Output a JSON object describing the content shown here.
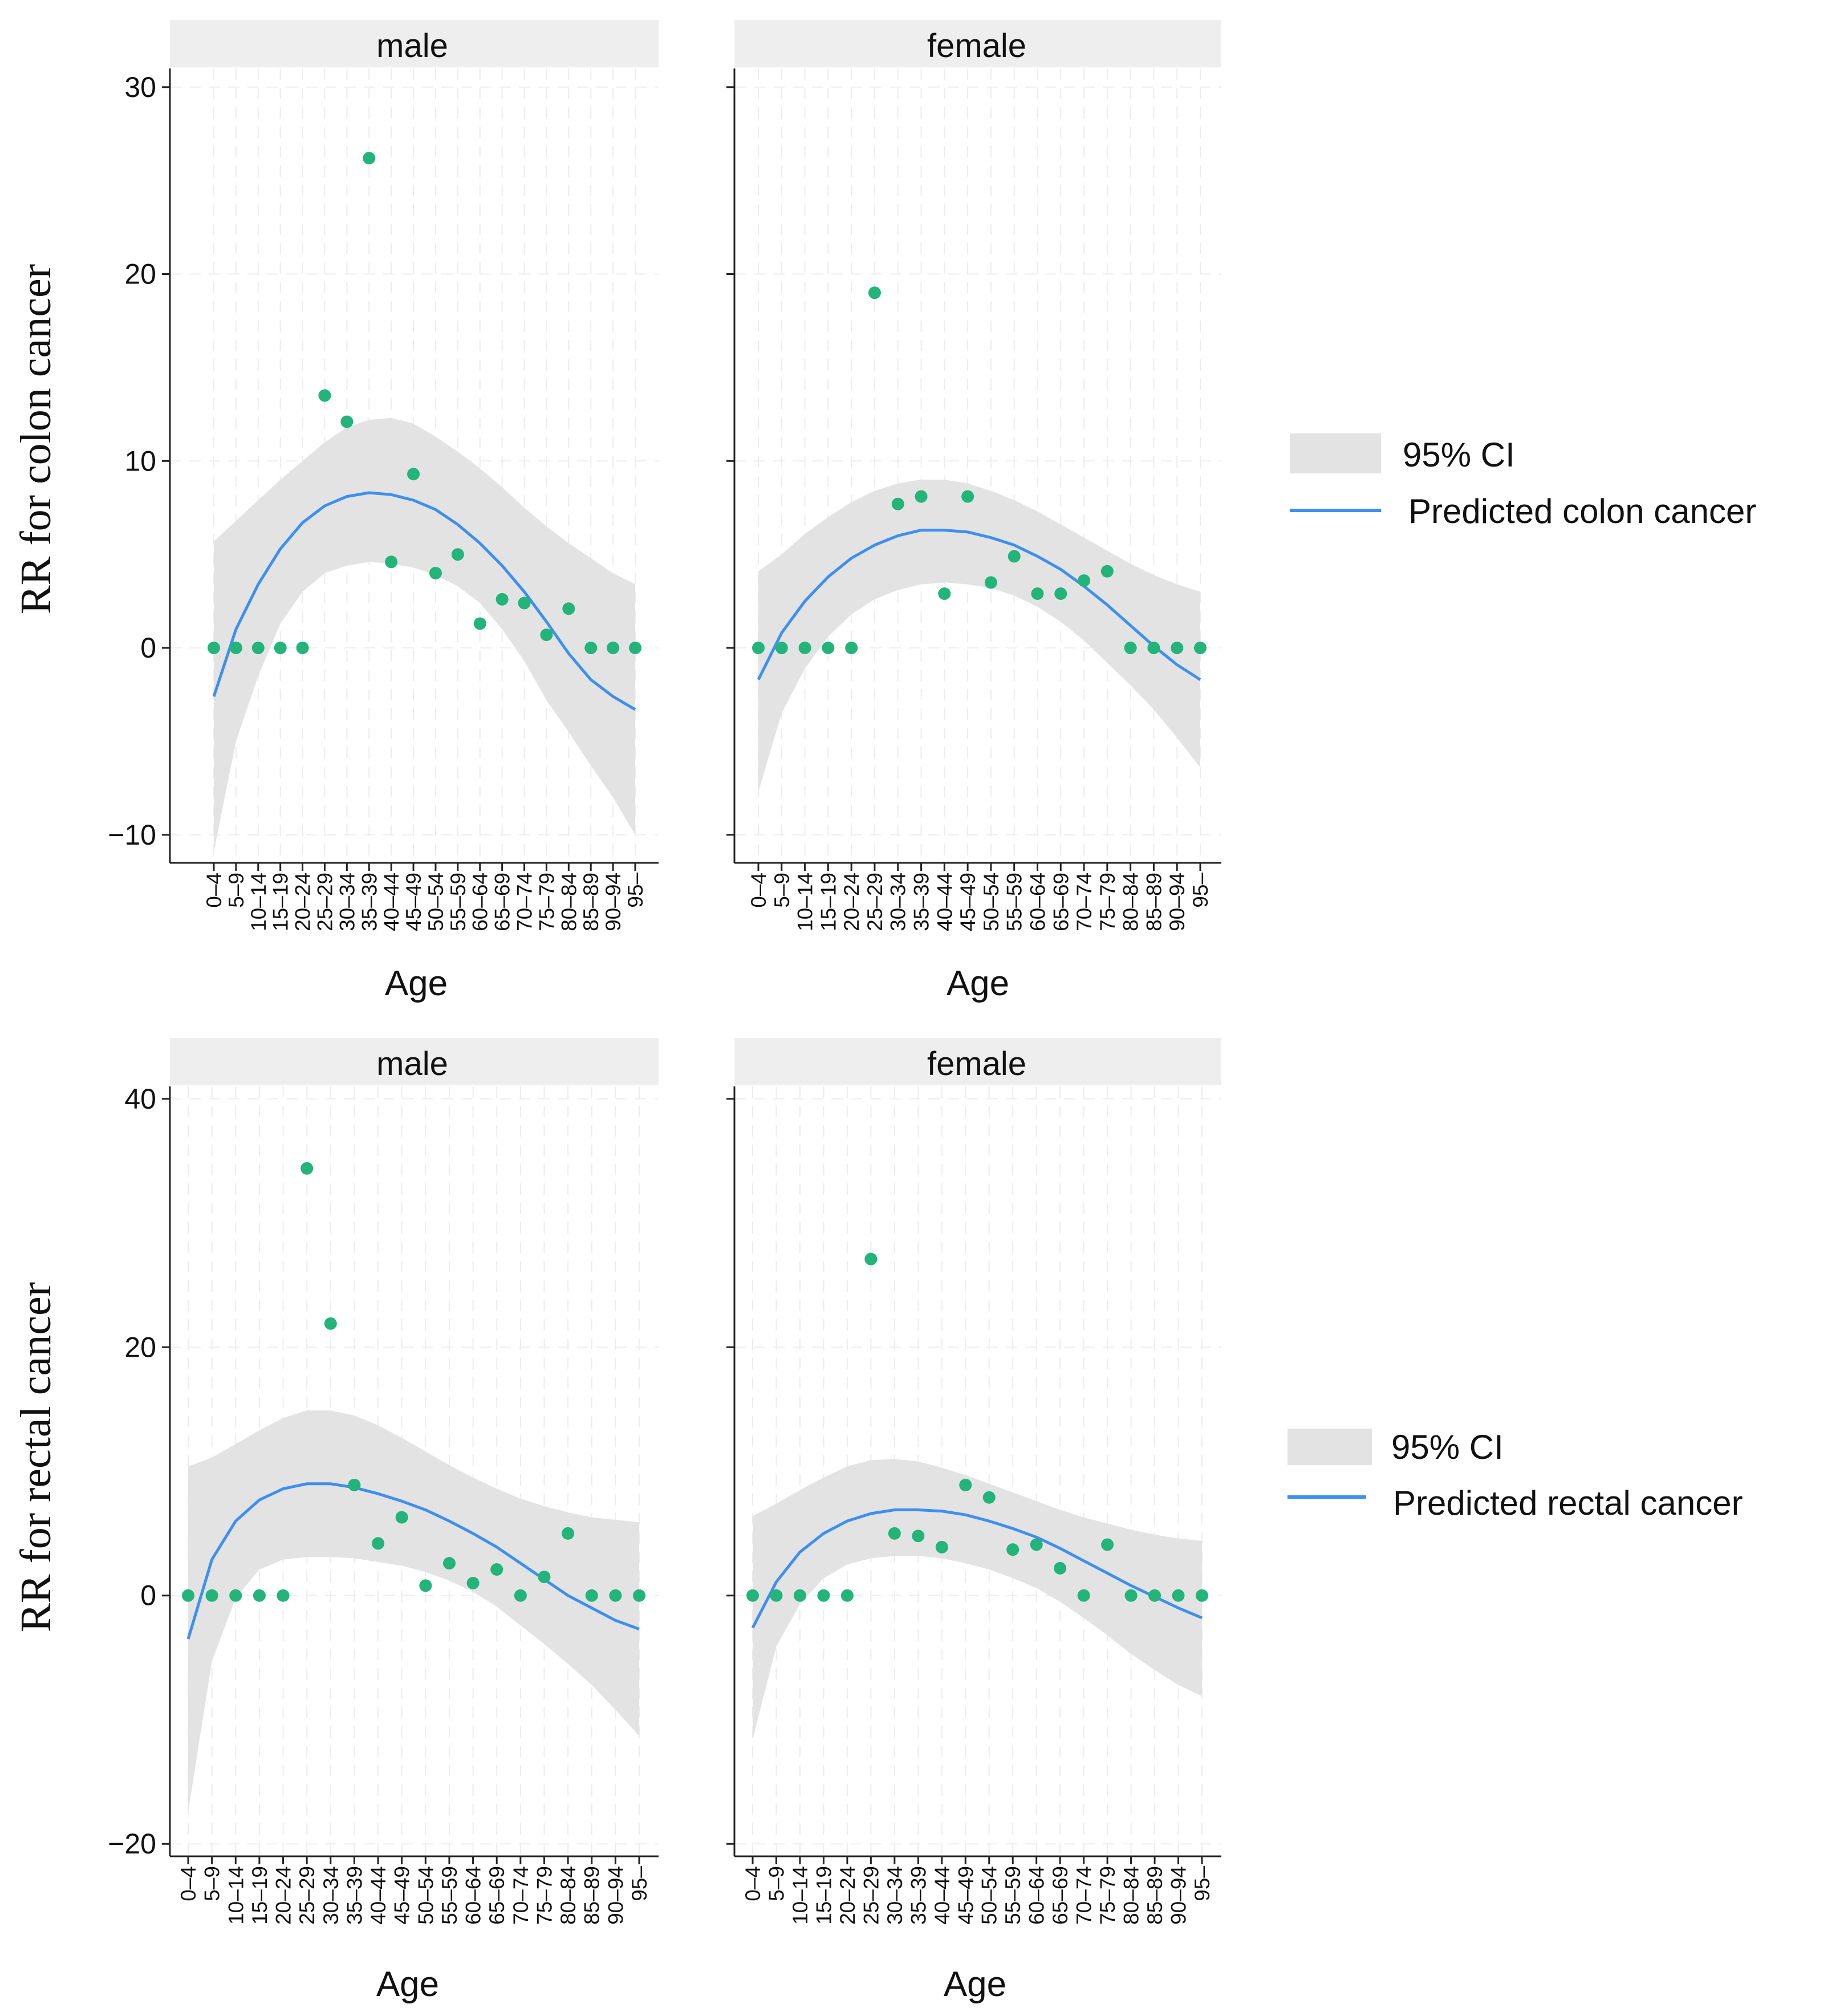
{
  "age_groups": [
    "0–4",
    "5–9",
    "10–14",
    "15–19",
    "20–24",
    "25–29",
    "30–34",
    "35–39",
    "40–44",
    "45–49",
    "50–54",
    "55–59",
    "60–64",
    "65–69",
    "70–74",
    "75–79",
    "80–84",
    "85–89",
    "90–94",
    "95–"
  ],
  "colors": {
    "point": "#22b47a",
    "line": "#3d8ff0",
    "ci": "#e3e3e3",
    "strip": "#eeeeee",
    "grid": "#f1f1f1"
  },
  "chart_data": [
    {
      "type": "scatter",
      "ylabel": "RR for colon cancer",
      "yticks": [
        -10,
        0,
        10,
        20,
        30
      ],
      "ylim": [
        -11.5,
        31
      ],
      "xlabel": "Age",
      "legend": {
        "ci_label": "95% CI",
        "line_label": "Predicted colon cancer"
      },
      "panels": [
        {
          "strip": "male",
          "points": [
            0,
            0,
            0,
            0,
            0,
            13.5,
            12.1,
            26.2,
            4.6,
            9.3,
            4.0,
            5.0,
            1.3,
            2.6,
            2.4,
            0.7,
            2.1,
            0,
            0,
            0
          ],
          "fit": [
            -2.6,
            1.0,
            3.4,
            5.3,
            6.7,
            7.6,
            8.1,
            8.3,
            8.2,
            7.9,
            7.4,
            6.6,
            5.6,
            4.4,
            3.0,
            1.4,
            -0.3,
            -1.7,
            -2.6,
            -3.3
          ],
          "ci_upper": [
            5.7,
            6.8,
            7.9,
            9.0,
            10.0,
            11.0,
            11.8,
            12.2,
            12.3,
            12.0,
            11.3,
            10.5,
            9.6,
            8.6,
            7.5,
            6.5,
            5.6,
            4.8,
            4.0,
            3.4
          ],
          "ci_lower": [
            -10.9,
            -5.0,
            -1.5,
            1.3,
            3.0,
            4.0,
            4.4,
            4.6,
            4.5,
            4.3,
            3.9,
            3.3,
            2.4,
            1.0,
            -0.7,
            -2.8,
            -4.5,
            -6.3,
            -8.0,
            -10.0
          ]
        },
        {
          "strip": "female",
          "points": [
            0,
            0,
            0,
            0,
            0,
            19.0,
            7.7,
            8.1,
            2.9,
            8.1,
            3.5,
            4.9,
            2.9,
            2.9,
            3.6,
            4.1,
            0,
            0,
            0,
            0
          ],
          "fit": [
            -1.7,
            0.8,
            2.5,
            3.8,
            4.8,
            5.5,
            6.0,
            6.3,
            6.3,
            6.2,
            5.9,
            5.5,
            4.9,
            4.2,
            3.3,
            2.3,
            1.2,
            0.1,
            -0.9,
            -1.7
          ],
          "ci_upper": [
            4.1,
            5.0,
            6.1,
            7.0,
            7.8,
            8.4,
            8.8,
            9.0,
            9.0,
            8.8,
            8.4,
            7.9,
            7.3,
            6.6,
            5.9,
            5.2,
            4.5,
            3.9,
            3.4,
            3.0
          ],
          "ci_lower": [
            -7.7,
            -3.5,
            -1.1,
            0.6,
            1.8,
            2.6,
            3.1,
            3.4,
            3.5,
            3.4,
            3.2,
            2.8,
            2.2,
            1.4,
            0.4,
            -0.8,
            -2.0,
            -3.3,
            -4.8,
            -6.4
          ]
        }
      ]
    },
    {
      "type": "scatter",
      "ylabel": "RR for rectal cancer",
      "yticks": [
        -20,
        0,
        20,
        40
      ],
      "ylim": [
        -21,
        41
      ],
      "xlabel": "Age",
      "legend": {
        "ci_label": "95% CI",
        "line_label": "Predicted rectal cancer"
      },
      "panels": [
        {
          "strip": "male",
          "points": [
            0,
            0,
            0,
            0,
            0,
            34.4,
            21.9,
            8.9,
            4.2,
            6.3,
            0.8,
            2.6,
            1.0,
            2.1,
            0,
            1.5,
            5.0,
            0,
            0,
            0
          ],
          "fit": [
            -3.5,
            2.9,
            6.0,
            7.7,
            8.6,
            9.0,
            9.0,
            8.7,
            8.2,
            7.6,
            6.9,
            6.0,
            5.0,
            3.9,
            2.6,
            1.3,
            0,
            -1.0,
            -2.0,
            -2.7
          ],
          "ci_upper": [
            10.4,
            11.1,
            12.2,
            13.3,
            14.3,
            14.9,
            14.9,
            14.5,
            13.7,
            12.7,
            11.6,
            10.5,
            9.5,
            8.6,
            7.8,
            7.2,
            6.7,
            6.3,
            6.1,
            5.9
          ],
          "ci_lower": [
            -17.4,
            -5.3,
            -0.2,
            2.1,
            2.9,
            3.1,
            3.1,
            3.0,
            2.7,
            2.4,
            1.9,
            1.2,
            0.3,
            -0.9,
            -2.4,
            -3.9,
            -5.5,
            -7.2,
            -9.2,
            -11.3
          ]
        },
        {
          "strip": "female",
          "points": [
            0,
            0,
            0,
            0,
            0,
            27.1,
            5.0,
            4.8,
            3.9,
            8.9,
            7.9,
            3.7,
            4.1,
            2.2,
            0,
            4.1,
            0,
            0,
            0,
            0
          ],
          "fit": [
            -2.6,
            1.1,
            3.5,
            5.0,
            6.0,
            6.6,
            6.9,
            6.9,
            6.8,
            6.5,
            6.0,
            5.4,
            4.7,
            3.8,
            2.8,
            1.8,
            0.8,
            -0.1,
            -1.0,
            -1.8
          ],
          "ci_upper": [
            6.4,
            7.4,
            8.5,
            9.5,
            10.4,
            10.9,
            11.0,
            10.8,
            10.3,
            9.7,
            9.0,
            8.3,
            7.6,
            6.9,
            6.3,
            5.8,
            5.3,
            4.9,
            4.6,
            4.4
          ],
          "ci_lower": [
            -11.6,
            -4.1,
            -0.7,
            1.4,
            2.5,
            3.0,
            3.2,
            3.2,
            3.0,
            2.6,
            2.1,
            1.4,
            0.6,
            -0.5,
            -1.8,
            -3.2,
            -4.7,
            -6.0,
            -7.2,
            -8.1
          ]
        }
      ]
    }
  ]
}
